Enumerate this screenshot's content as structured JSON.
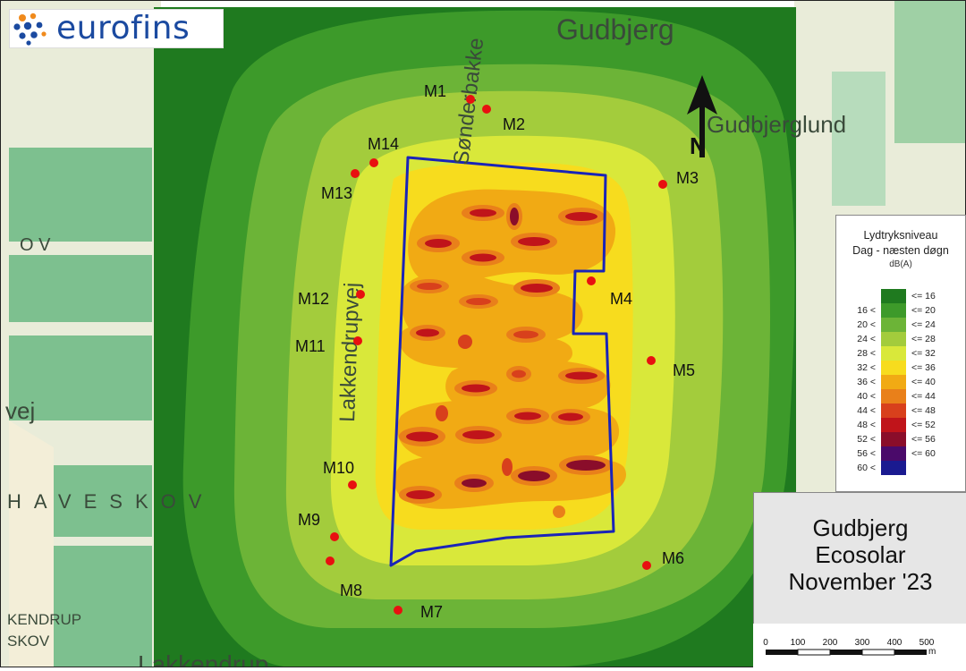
{
  "brand": {
    "name": "eurofins"
  },
  "map": {
    "place_names": {
      "gudbjerg": "Gudbjerg",
      "gudbjerglund": "Gudbjerglund",
      "sonderbakke": "Sønderbakke",
      "lakkendrupvej": "Lakkendrupvej",
      "lakkendrup": "Lakkendrup",
      "kendrup_skov_1": "KENDRUP",
      "kendrup_skov_2": "SKOV",
      "haveskov": "HAVESKOV",
      "vej": "vej",
      "ov": "O V"
    },
    "north_label": "N",
    "measurement_points": [
      {
        "id": "M1",
        "label": "M1"
      },
      {
        "id": "M2",
        "label": "M2"
      },
      {
        "id": "M3",
        "label": "M3"
      },
      {
        "id": "M4",
        "label": "M4"
      },
      {
        "id": "M5",
        "label": "M5"
      },
      {
        "id": "M6",
        "label": "M6"
      },
      {
        "id": "M7",
        "label": "M7"
      },
      {
        "id": "M8",
        "label": "M8"
      },
      {
        "id": "M9",
        "label": "M9"
      },
      {
        "id": "M10",
        "label": "M10"
      },
      {
        "id": "M11",
        "label": "M11"
      },
      {
        "id": "M12",
        "label": "M12"
      },
      {
        "id": "M13",
        "label": "M13"
      },
      {
        "id": "M14",
        "label": "M14"
      }
    ]
  },
  "legend": {
    "title_line1": "Lydtryksniveau",
    "title_line2": "Dag - næsten døgn",
    "unit": "dB(A)",
    "rows": [
      {
        "low": "",
        "high": "<= 16",
        "color": "#1f7a1f"
      },
      {
        "low": "16 <",
        "high": "<= 20",
        "color": "#3d9a2a"
      },
      {
        "low": "20 <",
        "high": "<= 24",
        "color": "#6cb437"
      },
      {
        "low": "24 <",
        "high": "<= 28",
        "color": "#a3cc3c"
      },
      {
        "low": "28 <",
        "high": "<= 32",
        "color": "#d9e83a"
      },
      {
        "low": "32 <",
        "high": "<= 36",
        "color": "#f7dc1e"
      },
      {
        "low": "36 <",
        "high": "<= 40",
        "color": "#f1aa14"
      },
      {
        "low": "40 <",
        "high": "<= 44",
        "color": "#e9801a"
      },
      {
        "low": "44 <",
        "high": "<= 48",
        "color": "#d8401c"
      },
      {
        "low": "48 <",
        "high": "<= 52",
        "color": "#c0141a"
      },
      {
        "low": "52 <",
        "high": "<= 56",
        "color": "#8a0d2a"
      },
      {
        "low": "56 <",
        "high": "<= 60",
        "color": "#4a0a6a"
      },
      {
        "low": "60 <",
        "high": "",
        "color": "#1a1a90"
      }
    ]
  },
  "title_box": {
    "line1": "Gudbjerg",
    "line2": "Ecosolar",
    "line3": "November '23"
  },
  "scale_bar": {
    "ticks": [
      "0",
      "100",
      "200",
      "300",
      "400",
      "500"
    ],
    "unit": "m"
  }
}
